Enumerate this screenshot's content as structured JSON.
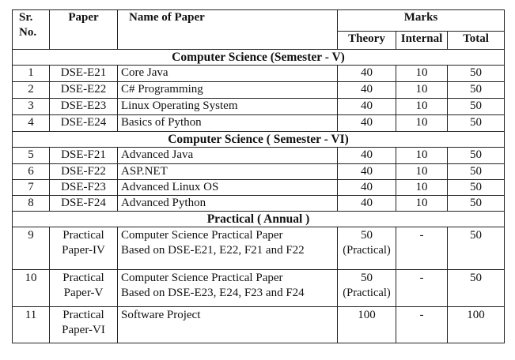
{
  "header": {
    "srno_line1": "Sr.",
    "srno_line2": "No.",
    "paper": "Paper",
    "name_of_paper": "Name of Paper",
    "marks": "Marks",
    "theory": "Theory",
    "internal": "Internal",
    "total": "Total"
  },
  "sections": [
    {
      "title": "Computer Science (Semester - V)",
      "rows": [
        {
          "sr": "1",
          "paper": "DSE-E21",
          "name": "Core Java",
          "theory": "40",
          "internal": "10",
          "total": "50"
        },
        {
          "sr": "2",
          "paper": "DSE-E22",
          "name": "C# Programming",
          "theory": "40",
          "internal": "10",
          "total": "50"
        },
        {
          "sr": "3",
          "paper": "DSE-E23",
          "name": "Linux Operating System",
          "theory": "40",
          "internal": "10",
          "total": "50"
        },
        {
          "sr": "4",
          "paper": "DSE-E24",
          "name": "Basics of Python",
          "theory": "40",
          "internal": "10",
          "total": "50"
        }
      ]
    },
    {
      "title": "Computer Science ( Semester - VI)",
      "rows": [
        {
          "sr": "5",
          "paper": "DSE-F21",
          "name": "Advanced Java",
          "theory": "40",
          "internal": "10",
          "total": "50"
        },
        {
          "sr": "6",
          "paper": "DSE-F22",
          "name": "ASP.NET",
          "theory": "40",
          "internal": "10",
          "total": "50"
        },
        {
          "sr": "7",
          "paper": "DSE-F23",
          "name": "Advanced Linux OS",
          "theory": "40",
          "internal": "10",
          "total": "50"
        },
        {
          "sr": "8",
          "paper": "DSE-F24",
          "name": "Advanced Python",
          "theory": "40",
          "internal": "10",
          "total": "50"
        }
      ]
    },
    {
      "title": "Practical ( Annual )",
      "rows": [
        {
          "sr": "9",
          "paper_line1": "Practical",
          "paper_line2": "Paper-IV",
          "name_line1": "Computer Science Practical Paper",
          "name_line2": "Based on DSE-E21, E22, F21 and F22",
          "theory_line1": "50",
          "theory_line2": "(Practical)",
          "internal": "-",
          "total": "50"
        },
        {
          "sr": "10",
          "paper_line1": "Practical",
          "paper_line2": "Paper-V",
          "name_line1": "Computer Science Practical Paper",
          "name_line2": "Based on DSE-E23, E24, F23 and F24",
          "theory_line1": "50",
          "theory_line2": "(Practical)",
          "internal": "-",
          "total": "50"
        },
        {
          "sr": "11",
          "paper_line1": "Practical",
          "paper_line2": "Paper-VI",
          "name_line1": "Software Project",
          "theory_line1": "100",
          "internal": "-",
          "total": "100"
        }
      ]
    }
  ]
}
